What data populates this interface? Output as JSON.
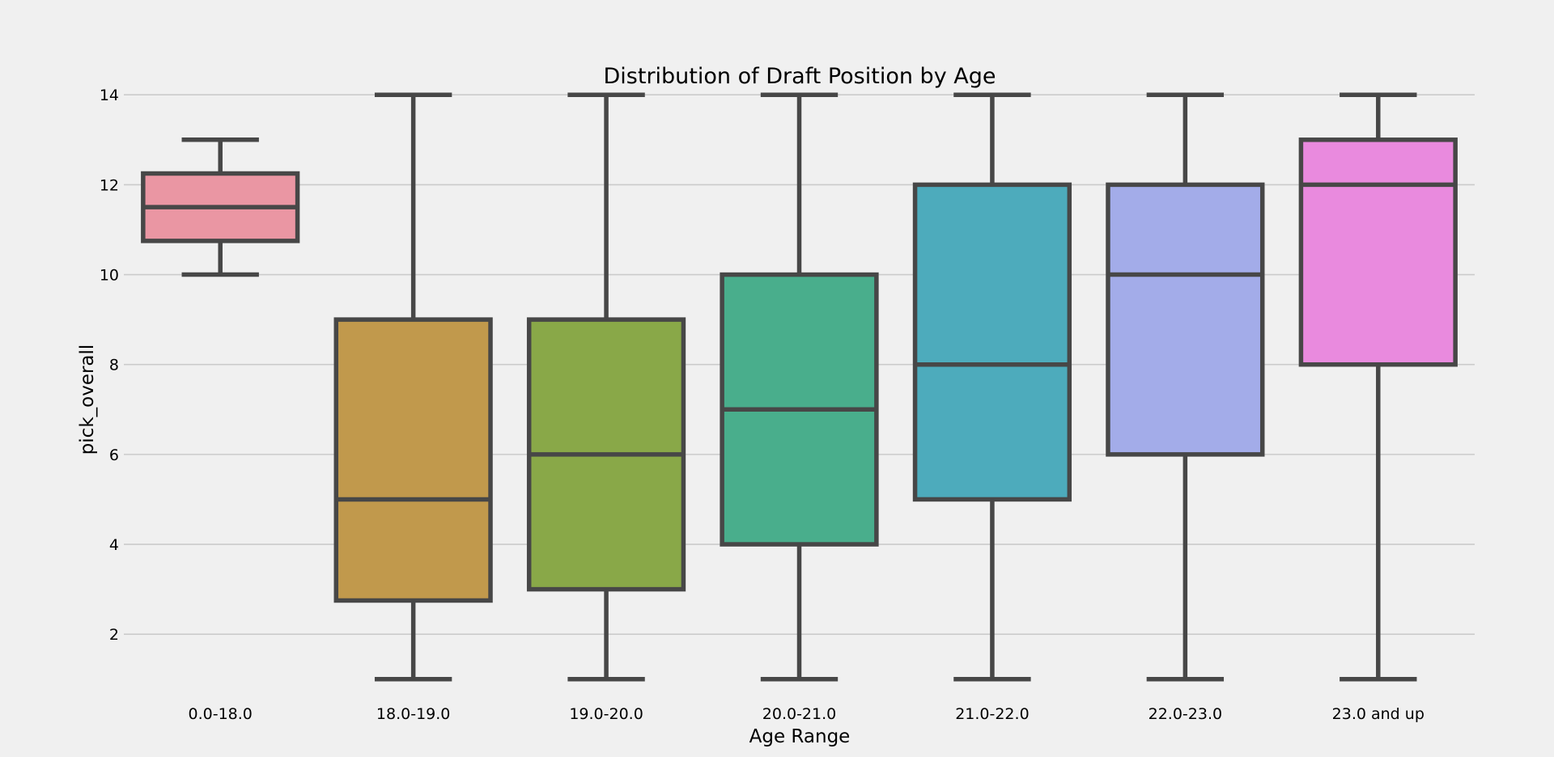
{
  "chart_data": {
    "type": "box",
    "title": "Distribution of Draft Position by Age",
    "xlabel": "Age Range",
    "ylabel": "pick_overall",
    "ylim": [
      0.6,
      14.4
    ],
    "yticks": [
      2,
      4,
      6,
      8,
      10,
      12,
      14
    ],
    "grid": "horizontal",
    "categories": [
      "0.0-18.0",
      "18.0-19.0",
      "19.0-20.0",
      "20.0-21.0",
      "21.0-22.0",
      "22.0-23.0",
      "23.0 and up"
    ],
    "boxes": [
      {
        "category": "0.0-18.0",
        "whisker_low": 10,
        "q1": 10.75,
        "median": 11.5,
        "q3": 12.25,
        "whisker_high": 13,
        "color": "#ea96a3"
      },
      {
        "category": "18.0-19.0",
        "whisker_low": 1,
        "q1": 2.75,
        "median": 5,
        "q3": 9,
        "whisker_high": 14,
        "color": "#c1994c"
      },
      {
        "category": "19.0-20.0",
        "whisker_low": 1,
        "q1": 3,
        "median": 6,
        "q3": 9,
        "whisker_high": 14,
        "color": "#89a848"
      },
      {
        "category": "20.0-21.0",
        "whisker_low": 1,
        "q1": 4,
        "median": 7,
        "q3": 10,
        "whisker_high": 14,
        "color": "#49ae8c"
      },
      {
        "category": "21.0-22.0",
        "whisker_low": 1,
        "q1": 5,
        "median": 8,
        "q3": 12,
        "whisker_high": 14,
        "color": "#4dabbc"
      },
      {
        "category": "22.0-23.0",
        "whisker_low": 1,
        "q1": 6,
        "median": 10,
        "q3": 12,
        "whisker_high": 14,
        "color": "#a3ace9"
      },
      {
        "category": "23.0 and up",
        "whisker_low": 1,
        "q1": 8,
        "median": 12,
        "q3": 13,
        "whisker_high": 14,
        "color": "#e98ade"
      }
    ],
    "line_color": "#474747",
    "background": "#f0f0f0",
    "grid_color": "#cbcbcb"
  }
}
